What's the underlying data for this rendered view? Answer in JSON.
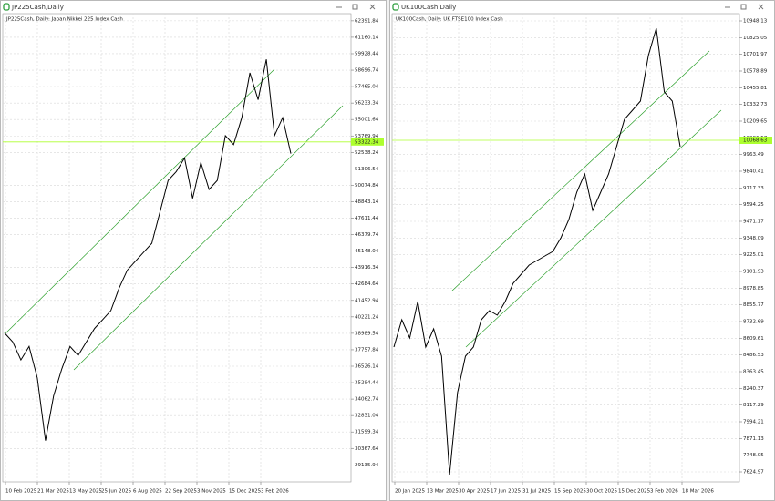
{
  "windows": [
    {
      "title": "JP225Cash,Daily",
      "chart": {
        "type": "line",
        "subtitle": "JP225Cash, Daily:  Japan Nikkei 225 Index Cash",
        "color": "#000000",
        "price_line_color": "#adff2f",
        "grid": true,
        "values": [
          39013,
          38342,
          36998,
          38006,
          35654,
          30952,
          34311,
          36326,
          38006,
          37334,
          38342,
          39349,
          40021,
          40693,
          42372,
          43716,
          44388,
          45060,
          45731,
          48083,
          50434,
          51106,
          52113,
          49090,
          51778,
          49762,
          50434,
          53793,
          53121,
          55137,
          58496,
          56480,
          59503,
          53793,
          55137,
          52449
        ],
        "categories": [
          "10 Feb 2025",
          "21 Mar 2025",
          "13 May 2025",
          "25 Jun 2025",
          "6 Aug 2025",
          "22 Sep 2025",
          "3 Nov 2025",
          "15 Dec 2025",
          "3 Feb 2026"
        ],
        "ylim": [
          27861.3,
          62929.28
        ],
        "yticks": [
          62391.84,
          61160.14,
          59928.44,
          58696.74,
          57465.04,
          56233.34,
          55001.64,
          53769.94,
          52538.24,
          51306.54,
          50074.84,
          48843.14,
          47611.44,
          46379.74,
          45148.04,
          43916.34,
          42684.64,
          41452.94,
          40221.24,
          38989.54,
          37757.84,
          36526.14,
          35294.44,
          34062.74,
          32831.04,
          31599.34,
          30367.64,
          29135.94
        ],
        "current_price": 53322.34
      }
    },
    {
      "title": "UK100Cash,Daily",
      "chart": {
        "type": "line",
        "subtitle": "UK100Cash, Daily:  UK FTSE100 Index Cash",
        "color": "#000000",
        "price_line_color": "#adff2f",
        "grid": true,
        "values": [
          8544.7,
          8746.1,
          8611.9,
          8880.3,
          8544.7,
          8678.9,
          8477.5,
          7604.8,
          8209.1,
          8477.5,
          8544.7,
          8746.1,
          8813.2,
          8779.6,
          8880.3,
          9014.6,
          9081.7,
          9148.9,
          9182.4,
          9216.0,
          9249.6,
          9350.3,
          9484.6,
          9686.0,
          9820.2,
          9551.7,
          9686.0,
          9820.2,
          10021.6,
          10223.0,
          10290.2,
          10357.3,
          10693.0,
          10894.4,
          10424.4,
          10357.3,
          10021.6
        ],
        "categories": [
          "20 Jan 2025",
          "13 Mar 2025",
          "30 Apr 2025",
          "17 Jun 2025",
          "31 Jul 2025",
          "15 Sep 2025",
          "30 Oct 2025",
          "15 Dec 2025",
          "3 Feb 2026",
          "18 Mar 2026"
        ],
        "ylim": [
          7551.13,
          11001.84
        ],
        "yticks": [
          10948.13,
          10825.05,
          10701.97,
          10578.89,
          10455.81,
          10332.73,
          10209.65,
          10086.57,
          9963.49,
          9840.41,
          9717.33,
          9594.25,
          9471.17,
          9348.09,
          9225.01,
          9101.93,
          8978.85,
          8855.77,
          8732.69,
          8609.61,
          8486.53,
          8363.45,
          8240.37,
          8117.29,
          7994.21,
          7871.13,
          7748.05,
          7624.97
        ],
        "current_price": 10068.63
      }
    }
  ]
}
